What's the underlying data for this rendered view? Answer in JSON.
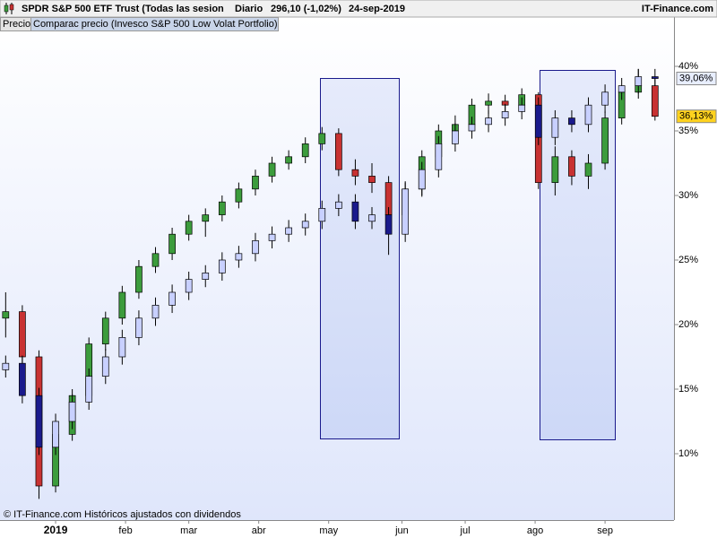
{
  "chart_data": {
    "type": "candlestick",
    "title": "SPDR S&P 500 ETF Trust (Todas las sesion",
    "period": "Diario",
    "price_label": "296,10 (-1,02%)",
    "date": "24-sep-2019",
    "source": "IT-Finance.com",
    "footer": "© IT-Finance.com  Históricos ajustados con dividendos",
    "x": [
      -15,
      -10,
      -5,
      0,
      5,
      10,
      15,
      20,
      25,
      30,
      35,
      40,
      45,
      50,
      55,
      60,
      65,
      70,
      75,
      80,
      85,
      90,
      95,
      100,
      105,
      110,
      115,
      120,
      125,
      130,
      135,
      140,
      145,
      150,
      155,
      160,
      165,
      170,
      175,
      180
    ],
    "xlim": [
      -16.7,
      185.7
    ],
    "xticks": [
      {
        "value": 0,
        "label": "2019"
      },
      {
        "value": 21,
        "label": "feb"
      },
      {
        "value": 40,
        "label": "mar"
      },
      {
        "value": 61,
        "label": "abr"
      },
      {
        "value": 82,
        "label": "may"
      },
      {
        "value": 104,
        "label": "jun"
      },
      {
        "value": 123,
        "label": "jul"
      },
      {
        "value": 144,
        "label": "ago"
      },
      {
        "value": 165,
        "label": "sep"
      }
    ],
    "ylim": [
      4.86,
      43.82
    ],
    "yticks": [
      {
        "value": 10,
        "label": "10%"
      },
      {
        "value": 15,
        "label": "15%"
      },
      {
        "value": 20,
        "label": "20%"
      },
      {
        "value": 25,
        "label": "25%"
      },
      {
        "value": 30,
        "label": "30%"
      },
      {
        "value": 35,
        "label": "35%"
      },
      {
        "value": 40,
        "label": "40%"
      }
    ],
    "series": [
      {
        "name": "Precio",
        "up_color": "#3c9c3c",
        "down_color": "#c83232",
        "label_color": "#ffd21e",
        "last_label": "36,13%",
        "open": [
          20.5,
          21.0,
          17.5,
          7.5,
          11.5,
          14.5,
          18.5,
          20.5,
          22.5,
          24.5,
          25.5,
          27.0,
          28.0,
          28.5,
          29.5,
          30.5,
          31.5,
          32.5,
          33.0,
          34.0,
          34.8,
          32.0,
          31.5,
          31.0,
          28.5,
          30.5,
          33.0,
          35.0,
          35.5,
          37.0,
          37.3,
          37.0,
          37.8,
          31.0,
          33.0,
          31.5,
          32.5,
          36.0,
          38.0,
          38.5
        ],
        "high": [
          22.5,
          21.5,
          18.0,
          12.2,
          15.0,
          19.0,
          21.0,
          23.0,
          25.0,
          26.0,
          27.5,
          28.5,
          29.0,
          30.0,
          31.0,
          32.0,
          33.0,
          33.5,
          34.5,
          35.3,
          35.2,
          32.8,
          32.5,
          31.5,
          31.0,
          33.5,
          35.5,
          36.2,
          37.5,
          37.9,
          37.8,
          38.3,
          38.0,
          33.8,
          33.5,
          33.2,
          36.5,
          38.5,
          39.8,
          39.0
        ],
        "low": [
          19.0,
          16.8,
          6.5,
          7.0,
          11.0,
          14.0,
          18.0,
          20.0,
          22.0,
          24.0,
          25.0,
          26.5,
          26.8,
          28.0,
          29.0,
          30.0,
          31.0,
          32.0,
          32.5,
          33.5,
          31.5,
          30.8,
          30.2,
          27.8,
          28.0,
          30.0,
          32.5,
          34.5,
          35.0,
          36.3,
          36.2,
          36.5,
          30.5,
          30.0,
          30.8,
          30.5,
          32.0,
          35.5,
          37.5,
          35.8
        ],
        "close": [
          21.0,
          17.5,
          7.5,
          11.5,
          14.5,
          18.5,
          20.5,
          22.5,
          24.5,
          25.5,
          27.0,
          28.0,
          28.5,
          29.5,
          30.5,
          31.5,
          32.5,
          33.0,
          34.0,
          34.8,
          32.0,
          31.5,
          31.0,
          28.5,
          30.5,
          33.0,
          35.0,
          35.5,
          37.0,
          37.3,
          37.0,
          37.8,
          31.0,
          33.0,
          31.5,
          32.5,
          36.0,
          38.0,
          38.5,
          36.13
        ]
      },
      {
        "name": "Comparac precio (Invesco S&P 500 Low Volat Portfolio)",
        "up_color": "#c8d0ff",
        "down_color": "#1a1a8c",
        "label_color": "#e8eeff",
        "last_label": "39,06%",
        "open": [
          16.5,
          17.0,
          14.5,
          10.5,
          12.5,
          14.0,
          16.0,
          17.5,
          19.0,
          20.5,
          21.5,
          22.5,
          23.5,
          24.0,
          25.0,
          25.5,
          26.5,
          27.0,
          27.5,
          28.0,
          29.0,
          29.5,
          28.0,
          28.5,
          27.0,
          30.5,
          32.0,
          34.0,
          35.0,
          35.5,
          36.0,
          36.5,
          37.0,
          34.5,
          36.0,
          35.5,
          37.0,
          38.0,
          38.5,
          39.2
        ],
        "high": [
          17.6,
          17.6,
          15.1,
          13.1,
          14.6,
          16.6,
          18.1,
          19.6,
          21.1,
          22.1,
          23.1,
          24.1,
          24.6,
          25.6,
          26.1,
          27.1,
          27.6,
          28.1,
          28.6,
          29.6,
          30.1,
          30.1,
          29.1,
          29.1,
          31.1,
          32.6,
          34.6,
          35.6,
          36.1,
          36.6,
          37.1,
          37.6,
          37.6,
          36.6,
          36.6,
          37.6,
          38.6,
          39.1,
          39.8,
          39.8
        ],
        "low": [
          15.9,
          13.9,
          9.9,
          9.9,
          11.9,
          13.4,
          15.4,
          16.9,
          18.4,
          19.9,
          20.9,
          21.9,
          22.9,
          23.4,
          24.4,
          24.9,
          25.9,
          26.4,
          26.9,
          27.4,
          28.4,
          27.4,
          27.4,
          25.4,
          26.4,
          29.9,
          31.4,
          33.4,
          34.4,
          34.9,
          35.4,
          35.9,
          33.9,
          33.9,
          34.9,
          34.9,
          36.4,
          37.4,
          37.9,
          38.5
        ],
        "close": [
          17.0,
          14.5,
          10.5,
          12.5,
          14.0,
          16.0,
          17.5,
          19.0,
          20.5,
          21.5,
          22.5,
          23.5,
          24.0,
          25.0,
          25.5,
          26.5,
          27.0,
          27.5,
          28.0,
          29.0,
          29.5,
          28.0,
          28.5,
          27.0,
          30.5,
          32.0,
          34.0,
          35.0,
          35.5,
          36.0,
          36.5,
          37.0,
          34.5,
          36.0,
          35.5,
          37.0,
          38.0,
          38.5,
          39.2,
          39.06
        ]
      }
    ]
  }
}
